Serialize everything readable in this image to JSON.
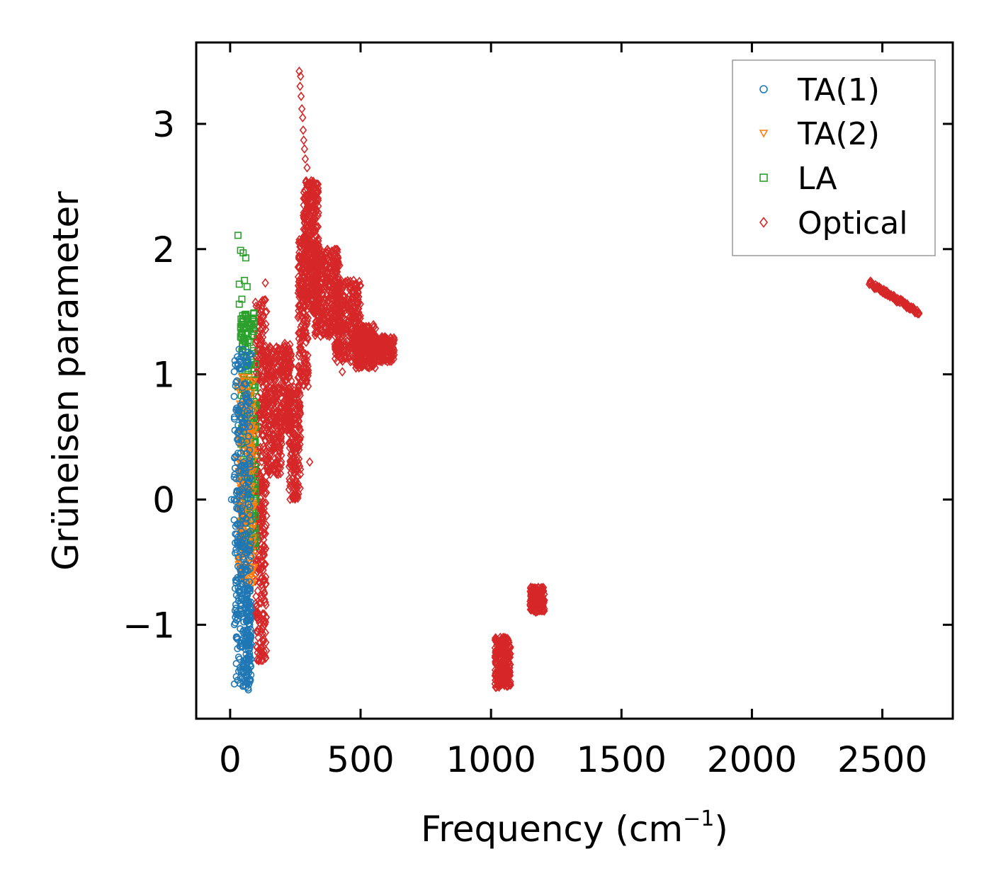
{
  "chart_data": {
    "type": "scatter",
    "title": "",
    "xlabel": "Frequency (cm",
    "xlabel_sup": "−1",
    "xlabel_close": ")",
    "ylabel": "Grüneisen parameter",
    "xlim": [
      -130,
      2770
    ],
    "ylim": [
      -1.75,
      3.65
    ],
    "xticks": [
      0,
      500,
      1000,
      1500,
      2000,
      2500
    ],
    "xtick_labels": [
      "0",
      "500",
      "1000",
      "1500",
      "2000",
      "2500"
    ],
    "yticks": [
      -1,
      0,
      1,
      2,
      3
    ],
    "ytick_labels": [
      "−1",
      "0",
      "1",
      "2",
      "3"
    ],
    "legend_position": "top-right",
    "series": [
      {
        "name": "TA(1)",
        "marker": "circle",
        "color": "#1f77b4",
        "clusters": [
          {
            "x": [
              15,
              80
            ],
            "y": [
              -1.52,
              1.2
            ],
            "n": 340
          },
          {
            "x": [
              60,
              80
            ],
            "y": [
              -1.52,
              -0.7
            ],
            "n": 90
          }
        ],
        "points": [
          [
            5,
            0.0
          ],
          [
            15,
            0.0
          ],
          [
            20,
            -0.94
          ],
          [
            25,
            -0.9
          ],
          [
            30,
            -0.92
          ],
          [
            25,
            -0.65
          ],
          [
            35,
            -0.35
          ],
          [
            30,
            0.37
          ],
          [
            35,
            1.05
          ],
          [
            35,
            1.12
          ],
          [
            40,
            -0.57
          ],
          [
            40,
            -0.85
          ],
          [
            45,
            1.16
          ],
          [
            50,
            1.2
          ],
          [
            55,
            1.15
          ],
          [
            70,
            -1.52
          ]
        ]
      },
      {
        "name": "TA(2)",
        "marker": "triangle-down",
        "color": "#ff7f0e",
        "clusters": [
          {
            "x": [
              30,
              95
            ],
            "y": [
              -0.7,
              1.0
            ],
            "n": 220
          }
        ],
        "points": [
          [
            30,
            0.9
          ],
          [
            35,
            0.3
          ],
          [
            40,
            0.55
          ],
          [
            45,
            0.9
          ],
          [
            55,
            0.95
          ],
          [
            70,
            0.8
          ]
        ]
      },
      {
        "name": "LA",
        "marker": "square",
        "color": "#2ca02c",
        "clusters": [
          {
            "x": [
              40,
              100
            ],
            "y": [
              -0.4,
              1.5
            ],
            "n": 240
          }
        ],
        "points": [
          [
            30,
            2.11
          ],
          [
            40,
            1.99
          ],
          [
            50,
            1.97
          ],
          [
            60,
            1.93
          ],
          [
            35,
            1.72
          ],
          [
            55,
            1.75
          ],
          [
            65,
            1.7
          ],
          [
            35,
            1.56
          ],
          [
            45,
            1.6
          ],
          [
            40,
            1.3
          ],
          [
            30,
            0.9
          ],
          [
            100,
            0.75
          ],
          [
            90,
            0.65
          ]
        ]
      },
      {
        "name": "Optical",
        "marker": "diamond",
        "color": "#d62728",
        "clusters": [
          {
            "x": [
              95,
              140
            ],
            "y": [
              -1.3,
              1.6
            ],
            "n": 380
          },
          {
            "x": [
              140,
              200
            ],
            "y": [
              0.2,
              1.25
            ],
            "n": 260
          },
          {
            "x": [
              200,
              235
            ],
            "y": [
              0.55,
              1.25
            ],
            "n": 150
          },
          {
            "x": [
              225,
              270
            ],
            "y": [
              0.0,
              0.9
            ],
            "n": 180
          },
          {
            "x": [
              260,
              300
            ],
            "y": [
              0.9,
              2.1
            ],
            "n": 200
          },
          {
            "x": [
              280,
              340
            ],
            "y": [
              1.5,
              2.55
            ],
            "n": 320
          },
          {
            "x": [
              320,
              420
            ],
            "y": [
              1.3,
              2.0
            ],
            "n": 320
          },
          {
            "x": [
              400,
              500
            ],
            "y": [
              1.1,
              1.75
            ],
            "n": 320
          },
          {
            "x": [
              480,
              560
            ],
            "y": [
              1.05,
              1.4
            ],
            "n": 220
          },
          {
            "x": [
              550,
              630
            ],
            "y": [
              1.1,
              1.3
            ],
            "n": 160
          },
          {
            "x": [
              1015,
              1075
            ],
            "y": [
              -1.5,
              -1.1
            ],
            "n": 230
          },
          {
            "x": [
              1150,
              1205
            ],
            "y": [
              -0.9,
              -0.7
            ],
            "n": 150
          }
        ],
        "points": [
          [
            265,
            3.42
          ],
          [
            270,
            3.38
          ],
          [
            268,
            3.3
          ],
          [
            272,
            3.22
          ],
          [
            275,
            3.12
          ],
          [
            278,
            3.05
          ],
          [
            280,
            2.95
          ],
          [
            282,
            2.87
          ],
          [
            285,
            2.8
          ],
          [
            288,
            2.72
          ],
          [
            295,
            2.65
          ],
          [
            270,
            0.5
          ],
          [
            305,
            0.3
          ],
          [
            430,
            1.02
          ],
          [
            275,
            1.3
          ],
          [
            300,
            1.55
          ],
          [
            135,
            1.73
          ],
          [
            2640,
            1.49
          ],
          [
            2600,
            1.53
          ],
          [
            2560,
            1.58
          ],
          [
            2520,
            1.63
          ],
          [
            2470,
            1.7
          ]
        ],
        "line_segments": [
          {
            "x0": 2450,
            "y0": 1.73,
            "x1": 2640,
            "y1": 1.49,
            "n": 90,
            "jitter": 0.02
          }
        ]
      }
    ]
  }
}
